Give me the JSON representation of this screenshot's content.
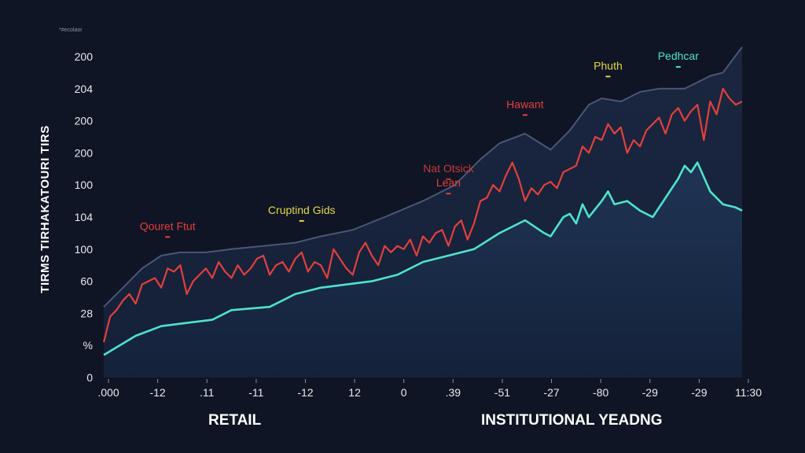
{
  "corner_note": "*#ecolaor",
  "chart_data": {
    "type": "line",
    "title": "",
    "ylabel": "TIRMS TIRHAKATOURI TIRS",
    "xlabel": "",
    "y_ticks": [
      "0",
      "%",
      "28",
      "60",
      "100",
      "104",
      "100",
      "200",
      "200",
      "204",
      "200"
    ],
    "x_ticks": [
      ".000",
      "-12",
      ".11",
      "-11",
      "-12",
      "12",
      "0",
      ".39",
      "-51",
      "-27",
      "-80",
      "-29",
      "-29",
      "11:30"
    ],
    "ylim": [
      0,
      10
    ],
    "categories_bottom": [
      "RETAIL",
      "INSTITUTIONAL YEADNG"
    ],
    "grid": false,
    "colors": {
      "envelope_line": "#4a5676",
      "red_series": "#e2403c",
      "teal_series": "#4fe3cc",
      "area_top": "#1f3554",
      "area_bottom": "#14213a"
    },
    "series": [
      {
        "name": "",
        "color": "#4a5676",
        "x": [
          0,
          0.03,
          0.06,
          0.09,
          0.12,
          0.16,
          0.2,
          0.25,
          0.3,
          0.34,
          0.39,
          0.44,
          0.5,
          0.55,
          0.59,
          0.62,
          0.66,
          0.7,
          0.73,
          0.76,
          0.78,
          0.81,
          0.84,
          0.87,
          0.91,
          0.95,
          0.97,
          1.0
        ],
        "y": [
          2.2,
          2.8,
          3.4,
          3.8,
          3.9,
          3.9,
          4.0,
          4.1,
          4.2,
          4.4,
          4.6,
          5.0,
          5.5,
          6.0,
          6.8,
          7.3,
          7.6,
          7.1,
          7.7,
          8.5,
          8.7,
          8.6,
          8.9,
          9.0,
          9.0,
          9.4,
          9.5,
          10.3
        ]
      },
      {
        "name": "",
        "color": "#e2403c",
        "x": [
          0,
          0.01,
          0.02,
          0.03,
          0.04,
          0.05,
          0.06,
          0.07,
          0.08,
          0.09,
          0.1,
          0.11,
          0.12,
          0.13,
          0.14,
          0.15,
          0.16,
          0.17,
          0.18,
          0.19,
          0.2,
          0.21,
          0.22,
          0.23,
          0.24,
          0.25,
          0.26,
          0.27,
          0.28,
          0.29,
          0.3,
          0.31,
          0.32,
          0.33,
          0.34,
          0.35,
          0.36,
          0.37,
          0.38,
          0.39,
          0.4,
          0.41,
          0.42,
          0.43,
          0.44,
          0.45,
          0.46,
          0.47,
          0.48,
          0.49,
          0.5,
          0.51,
          0.52,
          0.53,
          0.54,
          0.55,
          0.56,
          0.57,
          0.58,
          0.59,
          0.6,
          0.61,
          0.62,
          0.63,
          0.64,
          0.65,
          0.66,
          0.67,
          0.68,
          0.69,
          0.7,
          0.71,
          0.72,
          0.73,
          0.74,
          0.75,
          0.76,
          0.77,
          0.78,
          0.79,
          0.8,
          0.81,
          0.82,
          0.83,
          0.84,
          0.85,
          0.86,
          0.87,
          0.88,
          0.89,
          0.9,
          0.91,
          0.92,
          0.93,
          0.94,
          0.95,
          0.96,
          0.97,
          0.98,
          0.99,
          1.0
        ],
        "y": [
          1.1,
          1.9,
          2.1,
          2.4,
          2.6,
          2.3,
          2.9,
          3.0,
          3.1,
          2.8,
          3.4,
          3.3,
          3.5,
          2.6,
          3.0,
          3.2,
          3.4,
          3.1,
          3.6,
          3.3,
          3.1,
          3.5,
          3.2,
          3.4,
          3.7,
          3.8,
          3.2,
          3.5,
          3.6,
          3.3,
          3.7,
          3.9,
          3.3,
          3.6,
          3.5,
          3.1,
          4.0,
          3.7,
          3.4,
          3.2,
          3.9,
          4.2,
          3.8,
          3.5,
          4.1,
          3.9,
          4.1,
          4.0,
          4.3,
          3.8,
          4.4,
          4.2,
          4.5,
          4.6,
          4.1,
          4.7,
          4.9,
          4.3,
          4.8,
          5.5,
          5.6,
          6.0,
          5.8,
          6.3,
          6.7,
          6.2,
          5.5,
          5.9,
          5.7,
          6.0,
          6.1,
          5.9,
          6.4,
          6.5,
          6.6,
          7.2,
          7.0,
          7.5,
          7.4,
          7.9,
          7.6,
          7.8,
          7.0,
          7.4,
          7.2,
          7.7,
          7.9,
          8.1,
          7.6,
          8.2,
          8.4,
          8.0,
          8.3,
          8.5,
          7.4,
          8.6,
          8.2,
          9.0,
          8.7,
          8.5,
          8.6
        ]
      },
      {
        "name": "",
        "color": "#4fe3cc",
        "x": [
          0,
          0.05,
          0.09,
          0.13,
          0.17,
          0.2,
          0.26,
          0.3,
          0.34,
          0.38,
          0.42,
          0.46,
          0.5,
          0.54,
          0.58,
          0.62,
          0.66,
          0.69,
          0.7,
          0.72,
          0.73,
          0.74,
          0.75,
          0.76,
          0.78,
          0.79,
          0.8,
          0.82,
          0.84,
          0.86,
          0.88,
          0.9,
          0.91,
          0.92,
          0.93,
          0.95,
          0.97,
          0.99,
          1.0
        ],
        "y": [
          0.7,
          1.3,
          1.6,
          1.7,
          1.8,
          2.1,
          2.2,
          2.6,
          2.8,
          2.9,
          3.0,
          3.2,
          3.6,
          3.8,
          4.0,
          4.5,
          4.9,
          4.5,
          4.4,
          5.0,
          5.1,
          4.8,
          5.4,
          5.0,
          5.5,
          5.8,
          5.4,
          5.5,
          5.2,
          5.0,
          5.6,
          6.2,
          6.6,
          6.4,
          6.7,
          5.8,
          5.4,
          5.3,
          5.2
        ]
      }
    ],
    "annotations": [
      {
        "label": "Qouret Ftut",
        "x": 0.1,
        "y": 4.6,
        "color": "#e2403c"
      },
      {
        "label": "Cruptind Gids",
        "x": 0.31,
        "y": 5.1,
        "color": "#e6d64a"
      },
      {
        "label": "Nat Otsick",
        "x": 0.54,
        "y": 6.4,
        "color": "#c83a3a"
      },
      {
        "label": "Lean",
        "x": 0.54,
        "y": 5.95,
        "color": "#e2403c"
      },
      {
        "label": "Hawant",
        "x": 0.66,
        "y": 8.4,
        "color": "#e2403c"
      },
      {
        "label": "Phuth",
        "x": 0.79,
        "y": 9.6,
        "color": "#e6d64a"
      },
      {
        "label": "Pedhcar",
        "x": 0.9,
        "y": 9.9,
        "color": "#4fe3cc"
      }
    ]
  }
}
